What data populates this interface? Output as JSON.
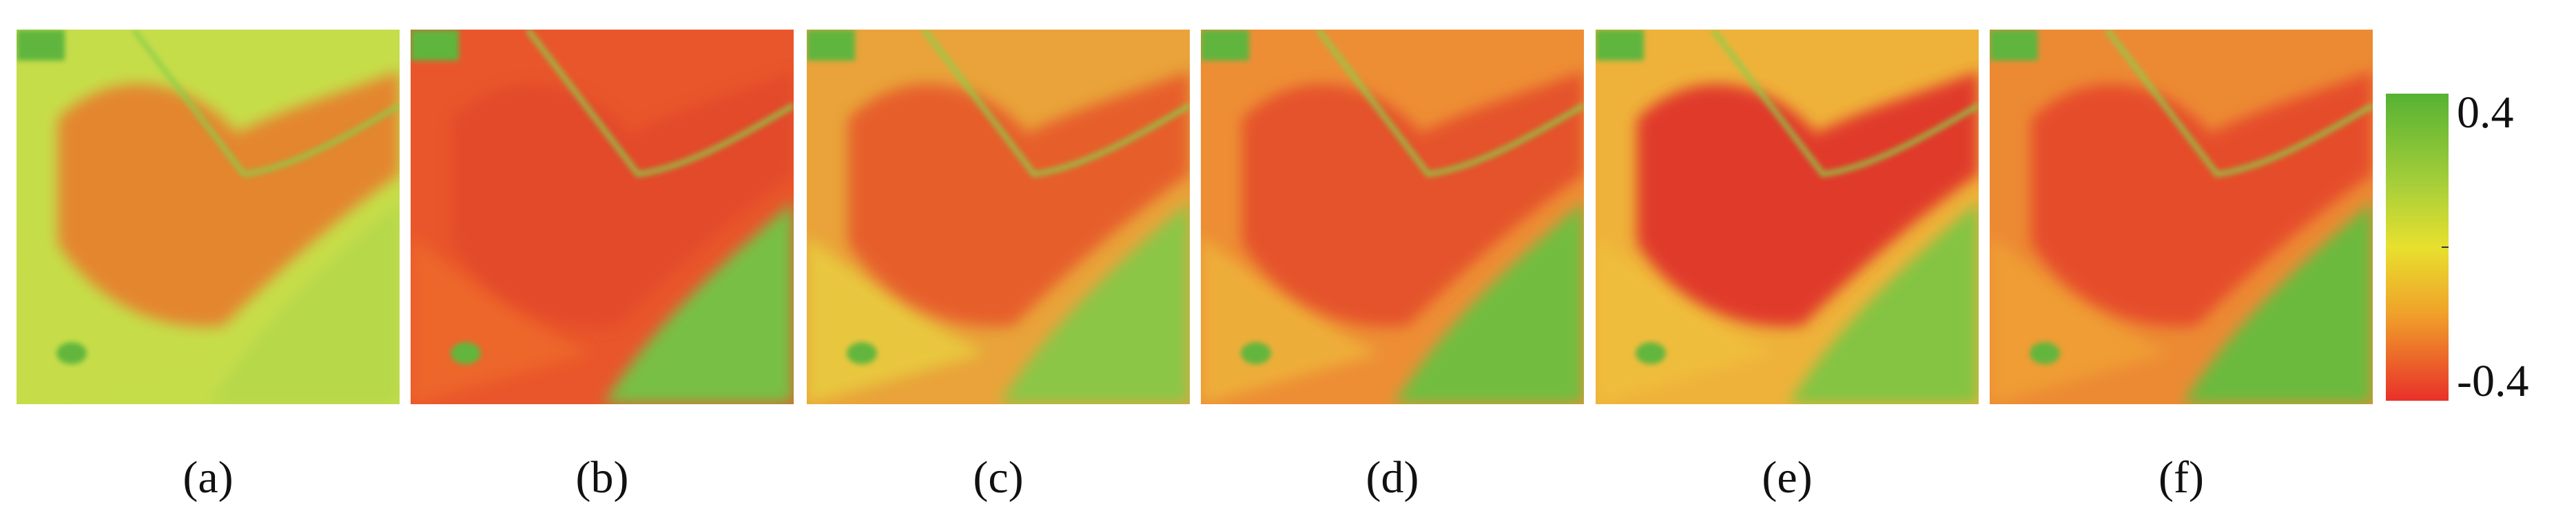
{
  "panels": [
    {
      "label": "(a)"
    },
    {
      "label": "(b)"
    },
    {
      "label": "(c)"
    },
    {
      "label": "(d)"
    },
    {
      "label": "(e)"
    },
    {
      "label": "(f)"
    }
  ],
  "colorbar": {
    "max": 0.4,
    "min": -0.4
  }
}
